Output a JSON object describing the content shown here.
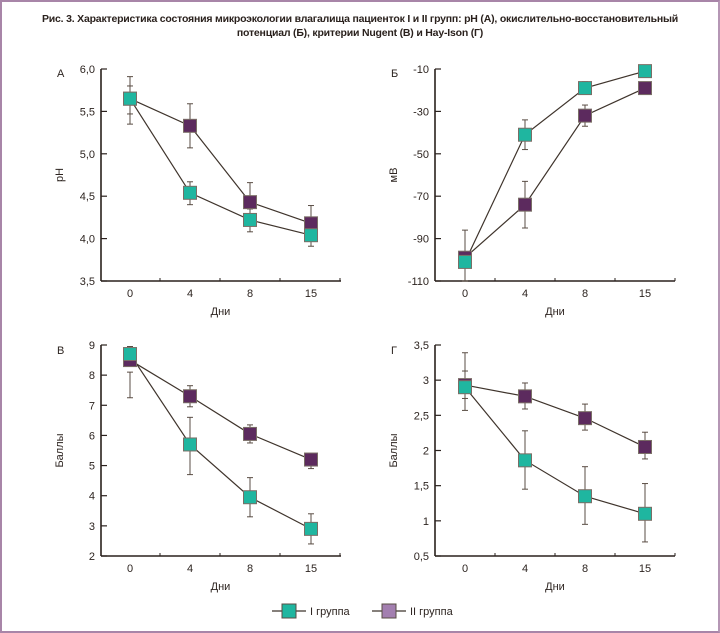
{
  "figure": {
    "title": "Рис. 3. Характеристика состояния микроэкологии влагалища пациенток I и II групп: pH (А), окислительно-восстановительный потенциал (Б), критерии Nugent (В) и Hay-Ison (Г)",
    "frame_color": "#a885a8"
  },
  "legend": {
    "items": [
      {
        "label": "I группа",
        "color": "#1fb6a0"
      },
      {
        "label": "II группа",
        "color": "#5c2a5e",
        "legend_color": "#a37fb0"
      }
    ]
  },
  "chart_data": [
    {
      "panel": "А",
      "type": "line",
      "title": "",
      "xlabel": "Дни",
      "ylabel": "pH",
      "categories": [
        "0",
        "4",
        "8",
        "15"
      ],
      "yticks": [
        "6,0",
        "5,5",
        "5,0",
        "4,5",
        "4,0",
        "3,5"
      ],
      "ytick_values": [
        6.0,
        5.5,
        5.0,
        4.5,
        4.0,
        3.5
      ],
      "ylim": [
        3.5,
        6.0
      ],
      "grid": false,
      "series": [
        {
          "name": "I группа",
          "values": [
            5.65,
            4.54,
            4.22,
            4.04
          ],
          "err_low": [
            5.35,
            4.4,
            4.08,
            3.91
          ],
          "err_high": [
            5.8,
            4.67,
            4.35,
            4.1
          ]
        },
        {
          "name": "II группа",
          "values": [
            5.65,
            5.33,
            4.43,
            4.18
          ],
          "err_low": [
            5.47,
            5.07,
            4.35,
            3.97
          ],
          "err_high": [
            5.91,
            5.59,
            4.66,
            4.39
          ]
        }
      ]
    },
    {
      "panel": "Б",
      "type": "line",
      "title": "",
      "xlabel": "Дни",
      "ylabel": "мВ",
      "categories": [
        "0",
        "4",
        "8",
        "15"
      ],
      "yticks": [
        "-10",
        "-30",
        "-50",
        "-70",
        "-90",
        "-110"
      ],
      "ytick_values": [
        -10,
        -30,
        -50,
        -70,
        -90,
        -110
      ],
      "ylim": [
        -110,
        -10
      ],
      "grid": false,
      "series": [
        {
          "name": "I группа",
          "values": [
            -101,
            -41,
            -19,
            -11
          ],
          "err_low": [
            -110,
            -48,
            -21,
            -12
          ],
          "err_high": [
            -98,
            -34,
            -16,
            -10
          ]
        },
        {
          "name": "II группа",
          "values": [
            -99,
            -74,
            -32,
            -19
          ],
          "err_low": [
            -101,
            -85,
            -37,
            -22
          ],
          "err_high": [
            -86,
            -63,
            -27,
            -17
          ]
        }
      ]
    },
    {
      "panel": "В",
      "type": "line",
      "title": "",
      "xlabel": "Дни",
      "ylabel": "Баллы",
      "categories": [
        "0",
        "4",
        "8",
        "15"
      ],
      "yticks": [
        "9",
        "8",
        "7",
        "6",
        "5",
        "4",
        "3",
        "2"
      ],
      "ytick_values": [
        9,
        8,
        7,
        6,
        5,
        4,
        3,
        2
      ],
      "ylim": [
        2,
        9
      ],
      "grid": false,
      "series": [
        {
          "name": "I группа",
          "values": [
            8.7,
            5.7,
            3.95,
            2.9
          ],
          "err_low": [
            8.5,
            4.7,
            3.3,
            2.4
          ],
          "err_high": [
            8.95,
            6.6,
            4.6,
            3.4
          ]
        },
        {
          "name": "II группа",
          "values": [
            8.5,
            7.3,
            6.05,
            5.2
          ],
          "err_low": [
            7.25,
            6.95,
            5.75,
            4.9
          ],
          "err_high": [
            8.1,
            7.65,
            6.35,
            5.4
          ]
        }
      ]
    },
    {
      "panel": "Г",
      "type": "line",
      "title": "",
      "xlabel": "Дни",
      "ylabel": "Баллы",
      "categories": [
        "0",
        "4",
        "8",
        "15"
      ],
      "yticks": [
        "3,5",
        "3",
        "2,5",
        "2",
        "1,5",
        "1",
        "0,5"
      ],
      "ytick_values": [
        3.5,
        3.0,
        2.5,
        2.0,
        1.5,
        1.0,
        0.5
      ],
      "ylim": [
        0.5,
        3.5
      ],
      "grid": false,
      "series": [
        {
          "name": "I группа",
          "values": [
            2.9,
            1.86,
            1.35,
            1.1
          ],
          "err_low": [
            2.74,
            1.45,
            0.95,
            0.7
          ],
          "err_high": [
            3.13,
            2.28,
            1.77,
            1.53
          ]
        },
        {
          "name": "II группа",
          "values": [
            2.93,
            2.77,
            2.46,
            2.05
          ],
          "err_low": [
            2.57,
            2.59,
            2.29,
            1.88
          ],
          "err_high": [
            3.39,
            2.96,
            2.66,
            2.26
          ]
        }
      ]
    }
  ]
}
